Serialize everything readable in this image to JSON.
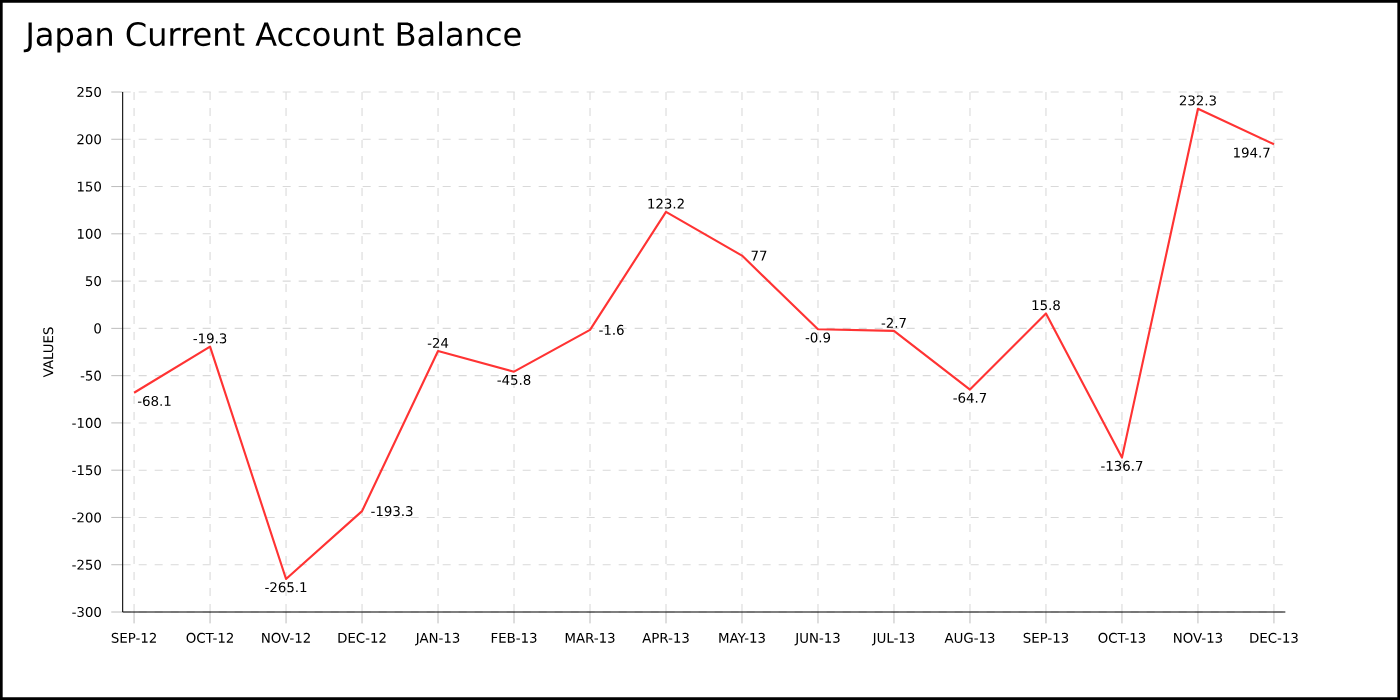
{
  "chart_data": {
    "type": "line",
    "title": "Japan Current Account Balance",
    "ylabel": "VALUES",
    "categories": [
      "SEP-12",
      "OCT-12",
      "NOV-12",
      "DEC-12",
      "JAN-13",
      "FEB-13",
      "MAR-13",
      "APR-13",
      "MAY-13",
      "JUN-13",
      "JUL-13",
      "AUG-13",
      "SEP-13",
      "OCT-13",
      "NOV-13",
      "DEC-13"
    ],
    "series": [
      {
        "color": "#ff3333",
        "values": [
          -68.1,
          -19.3,
          -265.1,
          -193.3,
          -24,
          -45.8,
          -1.6,
          123.2,
          77,
          -0.9,
          -2.7,
          -64.7,
          15.8,
          -136.7,
          232.3,
          194.7
        ]
      }
    ],
    "ylim": [
      -300,
      250
    ],
    "yticks": [
      -300,
      -250,
      -200,
      -150,
      -100,
      -50,
      0,
      50,
      100,
      150,
      200,
      250
    ],
    "grid": true,
    "data_labels": true,
    "marker": "none",
    "line_style": "solid"
  }
}
